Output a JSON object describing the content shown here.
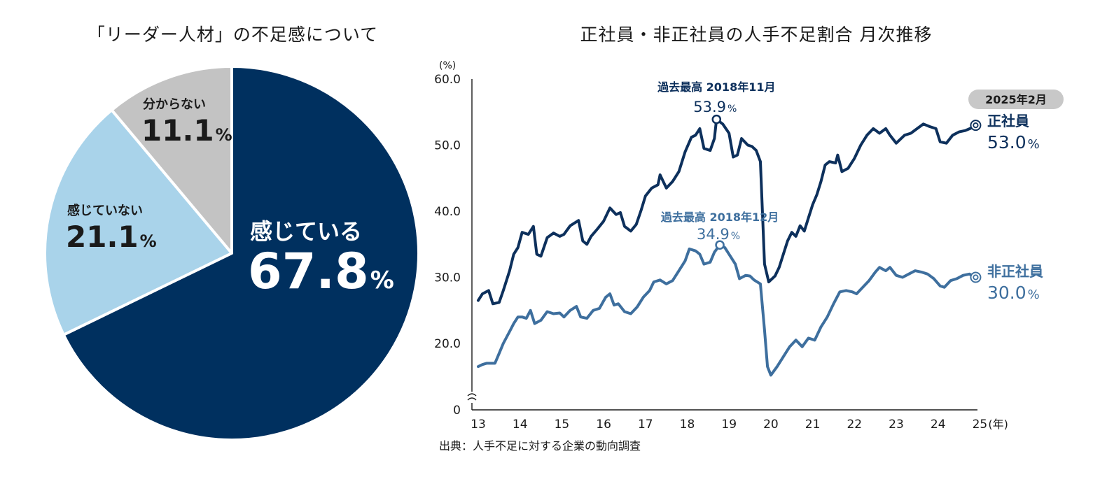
{
  "chart_data": [
    {
      "type": "pie",
      "title": "「リーダー人材」の不足感について",
      "slices": [
        {
          "label": "感じている",
          "value": 67.8,
          "display": "67.8",
          "color": "#00305f",
          "text_color": "#ffffff"
        },
        {
          "label": "感じていない",
          "value": 21.1,
          "display": "21.1",
          "color": "#a9d3ea",
          "text_color": "#1a1a1a"
        },
        {
          "label": "分からない",
          "value": 11.1,
          "display": "11.1",
          "color": "#c3c3c3",
          "text_color": "#1a1a1a"
        }
      ],
      "unit": "%"
    },
    {
      "type": "line",
      "title": "正社員・非正社員の人手不足割合 月次推移",
      "ylabel": "(%)",
      "xlabel": "(年)",
      "ylim": [
        0,
        60
      ],
      "yticks": [
        "0",
        "20.0",
        "30.0",
        "40.0",
        "50.0",
        "60.0"
      ],
      "xticks": [
        "13",
        "14",
        "15",
        "16",
        "17",
        "18",
        "19",
        "20",
        "21",
        "22",
        "23",
        "24",
        "25"
      ],
      "source": "出典：人手不足に対する企業の動向調査",
      "end_badge": "2025年2月",
      "series": [
        {
          "name": "正社員",
          "color": "#0d305c",
          "end_value": "53.0",
          "peak_label": "過去最高 2018年11月",
          "peak_value": "53.9",
          "peak_point": [
            18.7,
            53.9
          ],
          "points": [
            [
              13.0,
              26.5
            ],
            [
              13.1,
              27.5
            ],
            [
              13.25,
              28.0
            ],
            [
              13.35,
              26.0
            ],
            [
              13.5,
              26.2
            ],
            [
              13.6,
              28.0
            ],
            [
              13.75,
              31.0
            ],
            [
              13.85,
              33.5
            ],
            [
              13.95,
              34.5
            ],
            [
              14.05,
              36.8
            ],
            [
              14.2,
              36.5
            ],
            [
              14.32,
              37.7
            ],
            [
              14.4,
              33.5
            ],
            [
              14.5,
              33.2
            ],
            [
              14.65,
              36.0
            ],
            [
              14.8,
              36.7
            ],
            [
              14.95,
              36.2
            ],
            [
              15.05,
              36.5
            ],
            [
              15.2,
              37.8
            ],
            [
              15.4,
              38.6
            ],
            [
              15.5,
              35.5
            ],
            [
              15.6,
              35.0
            ],
            [
              15.7,
              36.2
            ],
            [
              15.85,
              37.3
            ],
            [
              16.0,
              38.5
            ],
            [
              16.15,
              40.5
            ],
            [
              16.3,
              39.5
            ],
            [
              16.4,
              39.8
            ],
            [
              16.5,
              37.7
            ],
            [
              16.65,
              37.0
            ],
            [
              16.78,
              38.0
            ],
            [
              16.9,
              40.2
            ],
            [
              17.0,
              42.3
            ],
            [
              17.15,
              43.5
            ],
            [
              17.3,
              44.0
            ],
            [
              17.35,
              45.5
            ],
            [
              17.5,
              43.5
            ],
            [
              17.65,
              44.5
            ],
            [
              17.8,
              46.0
            ],
            [
              17.95,
              49.0
            ],
            [
              18.1,
              51.2
            ],
            [
              18.2,
              51.5
            ],
            [
              18.3,
              52.5
            ],
            [
              18.4,
              49.5
            ],
            [
              18.55,
              49.2
            ],
            [
              18.65,
              51.0
            ],
            [
              18.7,
              53.9
            ],
            [
              18.85,
              53.2
            ],
            [
              19.0,
              51.8
            ],
            [
              19.1,
              48.2
            ],
            [
              19.2,
              48.5
            ],
            [
              19.3,
              51.0
            ],
            [
              19.45,
              50.0
            ],
            [
              19.55,
              49.8
            ],
            [
              19.65,
              49.2
            ],
            [
              19.75,
              47.5
            ],
            [
              19.85,
              32.0
            ],
            [
              19.95,
              29.3
            ],
            [
              20.1,
              30.2
            ],
            [
              20.2,
              31.5
            ],
            [
              20.3,
              33.5
            ],
            [
              20.4,
              35.5
            ],
            [
              20.5,
              36.8
            ],
            [
              20.6,
              36.2
            ],
            [
              20.7,
              37.8
            ],
            [
              20.8,
              37.0
            ],
            [
              20.9,
              39.0
            ],
            [
              21.0,
              41.0
            ],
            [
              21.1,
              42.5
            ],
            [
              21.2,
              44.5
            ],
            [
              21.3,
              47.0
            ],
            [
              21.4,
              47.5
            ],
            [
              21.55,
              47.3
            ],
            [
              21.6,
              48.5
            ],
            [
              21.7,
              46.0
            ],
            [
              21.85,
              46.5
            ],
            [
              22.0,
              48.0
            ],
            [
              22.15,
              50.0
            ],
            [
              22.3,
              51.5
            ],
            [
              22.45,
              52.5
            ],
            [
              22.6,
              51.8
            ],
            [
              22.75,
              52.5
            ],
            [
              22.85,
              51.5
            ],
            [
              23.0,
              50.3
            ],
            [
              23.2,
              51.5
            ],
            [
              23.35,
              51.8
            ],
            [
              23.5,
              52.5
            ],
            [
              23.65,
              53.2
            ],
            [
              23.8,
              52.8
            ],
            [
              23.95,
              52.5
            ],
            [
              24.05,
              50.5
            ],
            [
              24.2,
              50.3
            ],
            [
              24.35,
              51.5
            ],
            [
              24.5,
              52.0
            ],
            [
              24.65,
              52.2
            ],
            [
              24.8,
              52.6
            ],
            [
              24.9,
              53.0
            ]
          ]
        },
        {
          "name": "非正社員",
          "color": "#3e6f9e",
          "end_value": "30.0",
          "peak_label": "過去最高 2018年12月",
          "peak_value": "34.9",
          "peak_point": [
            18.78,
            34.9
          ],
          "points": [
            [
              13.0,
              16.5
            ],
            [
              13.1,
              16.8
            ],
            [
              13.2,
              17.0
            ],
            [
              13.4,
              17.0
            ],
            [
              13.5,
              18.5
            ],
            [
              13.6,
              20.0
            ],
            [
              13.75,
              21.8
            ],
            [
              13.85,
              23.0
            ],
            [
              13.95,
              24.0
            ],
            [
              14.05,
              24.0
            ],
            [
              14.15,
              23.8
            ],
            [
              14.25,
              25.0
            ],
            [
              14.35,
              23.0
            ],
            [
              14.5,
              23.5
            ],
            [
              14.65,
              24.8
            ],
            [
              14.8,
              24.5
            ],
            [
              14.95,
              24.6
            ],
            [
              15.05,
              24.0
            ],
            [
              15.2,
              25.0
            ],
            [
              15.35,
              25.6
            ],
            [
              15.45,
              24.0
            ],
            [
              15.6,
              23.8
            ],
            [
              15.75,
              25.0
            ],
            [
              15.9,
              25.3
            ],
            [
              16.05,
              27.0
            ],
            [
              16.15,
              27.5
            ],
            [
              16.25,
              25.8
            ],
            [
              16.35,
              26.0
            ],
            [
              16.5,
              24.8
            ],
            [
              16.65,
              24.5
            ],
            [
              16.8,
              25.5
            ],
            [
              16.95,
              27.0
            ],
            [
              17.1,
              28.0
            ],
            [
              17.2,
              29.3
            ],
            [
              17.35,
              29.6
            ],
            [
              17.5,
              29.0
            ],
            [
              17.65,
              29.5
            ],
            [
              17.8,
              31.0
            ],
            [
              17.95,
              32.5
            ],
            [
              18.05,
              34.3
            ],
            [
              18.2,
              34.0
            ],
            [
              18.3,
              33.5
            ],
            [
              18.4,
              32.0
            ],
            [
              18.55,
              32.3
            ],
            [
              18.65,
              33.8
            ],
            [
              18.78,
              34.9
            ],
            [
              18.9,
              34.5
            ],
            [
              19.0,
              33.5
            ],
            [
              19.15,
              32.0
            ],
            [
              19.25,
              29.8
            ],
            [
              19.4,
              30.3
            ],
            [
              19.5,
              30.2
            ],
            [
              19.6,
              29.6
            ],
            [
              19.75,
              29.0
            ],
            [
              19.85,
              22.0
            ],
            [
              19.92,
              16.5
            ],
            [
              20.0,
              15.2
            ],
            [
              20.15,
              16.5
            ],
            [
              20.3,
              18.0
            ],
            [
              20.45,
              19.5
            ],
            [
              20.6,
              20.5
            ],
            [
              20.75,
              19.5
            ],
            [
              20.9,
              20.8
            ],
            [
              21.05,
              20.5
            ],
            [
              21.2,
              22.5
            ],
            [
              21.35,
              24.0
            ],
            [
              21.5,
              26.0
            ],
            [
              21.65,
              27.8
            ],
            [
              21.8,
              28.0
            ],
            [
              21.95,
              27.8
            ],
            [
              22.05,
              27.5
            ],
            [
              22.2,
              28.5
            ],
            [
              22.35,
              29.5
            ],
            [
              22.5,
              30.8
            ],
            [
              22.6,
              31.5
            ],
            [
              22.75,
              31.0
            ],
            [
              22.85,
              31.5
            ],
            [
              23.0,
              30.3
            ],
            [
              23.15,
              30.0
            ],
            [
              23.3,
              30.5
            ],
            [
              23.45,
              31.0
            ],
            [
              23.6,
              30.8
            ],
            [
              23.75,
              30.5
            ],
            [
              23.9,
              29.8
            ],
            [
              24.05,
              28.7
            ],
            [
              24.15,
              28.5
            ],
            [
              24.3,
              29.5
            ],
            [
              24.45,
              29.8
            ],
            [
              24.6,
              30.3
            ],
            [
              24.75,
              30.5
            ],
            [
              24.9,
              30.0
            ]
          ]
        }
      ]
    }
  ]
}
